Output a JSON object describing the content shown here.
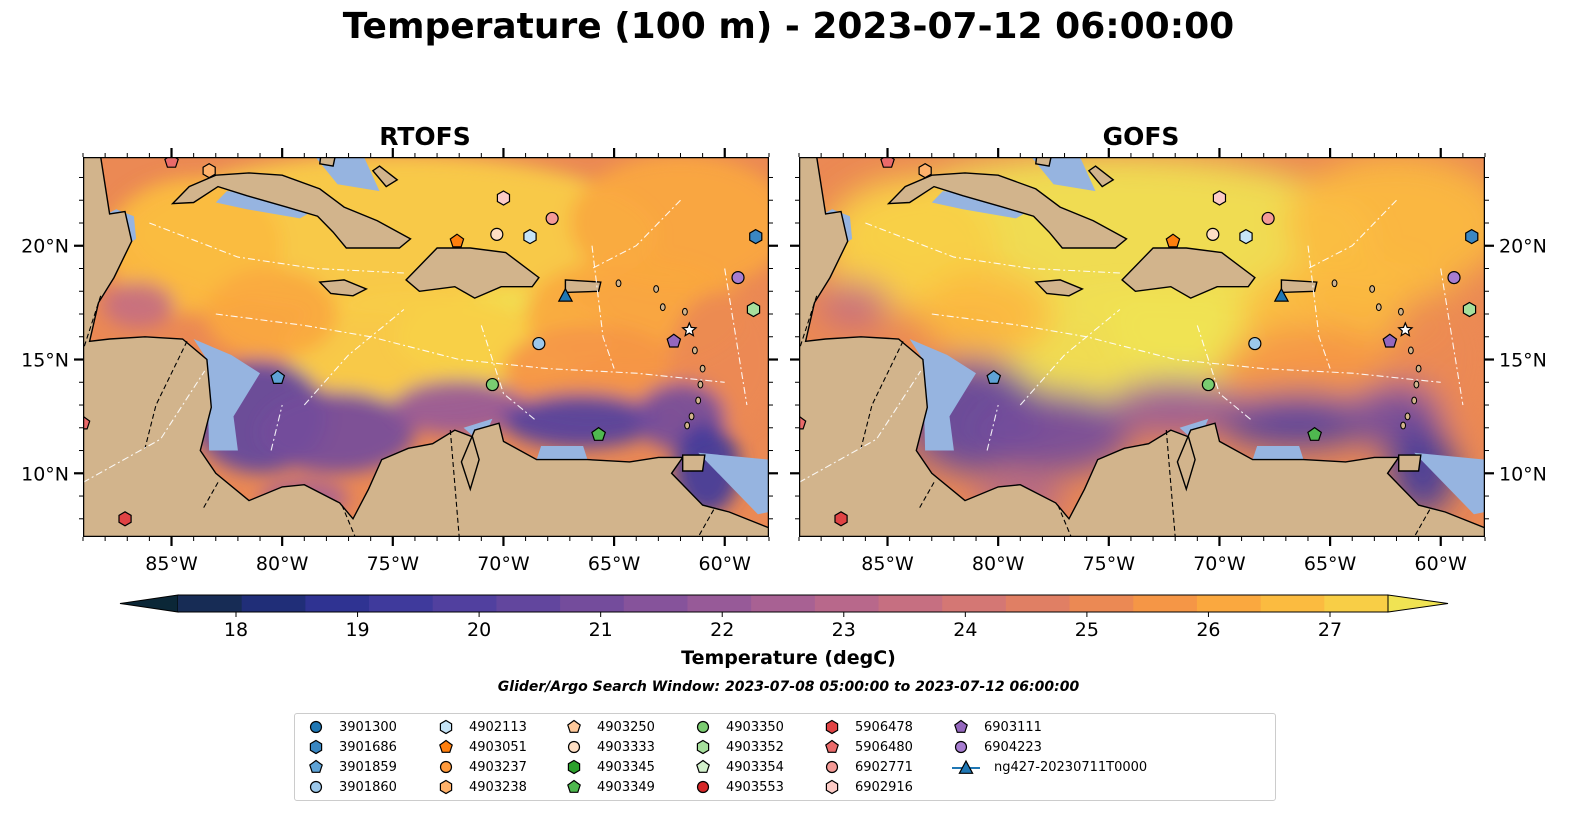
{
  "title": "Temperature (100 m) - 2023-07-12 06:00:00",
  "panels": [
    {
      "title": "RTOFS",
      "style": "rtofs"
    },
    {
      "title": "GOFS",
      "style": "gofs"
    }
  ],
  "lon_ticks": [
    "85°W",
    "80°W",
    "75°W",
    "70°W",
    "65°W",
    "60°W"
  ],
  "lat_ticks": [
    "20°N",
    "15°N",
    "10°N"
  ],
  "colorbar": {
    "label": "Temperature (degC)",
    "ticks": [
      "18",
      "19",
      "20",
      "21",
      "22",
      "23",
      "24",
      "25",
      "26",
      "27"
    ],
    "min": 18,
    "max": 27,
    "step": 0.5,
    "colors": [
      "#0b2737",
      "#172c55",
      "#202e78",
      "#2f3392",
      "#3f3a9c",
      "#51409f",
      "#62469e",
      "#744c9c",
      "#86539b",
      "#975a98",
      "#a86193",
      "#b8688b",
      "#c66f81",
      "#d47774",
      "#e07f64",
      "#eb8954",
      "#f59646",
      "#faa83f",
      "#fbbb40",
      "#f8ce46",
      "#f0e353"
    ]
  },
  "search_window": "Glider/Argo Search Window: 2023-07-08 05:00:00 to 2023-07-12 06:00:00",
  "land_color": "#d2b48c",
  "ocean_shallow_color": "#96b4e0",
  "legend": [
    {
      "label": "3901300",
      "marker": "circle",
      "color": "#1f77b4"
    },
    {
      "label": "3901686",
      "marker": "hexagon",
      "color": "#3a87c2"
    },
    {
      "label": "3901859",
      "marker": "pentagon",
      "color": "#5fa3d6"
    },
    {
      "label": "3901860",
      "marker": "circle",
      "color": "#9cc8ea"
    },
    {
      "label": "4902113",
      "marker": "hexagon",
      "color": "#c6e4f7"
    },
    {
      "label": "4903051",
      "marker": "pentagon",
      "color": "#ff7f0e"
    },
    {
      "label": "4903237",
      "marker": "circle",
      "color": "#ff9a3c"
    },
    {
      "label": "4903238",
      "marker": "hexagon",
      "color": "#ffb26b"
    },
    {
      "label": "4903250",
      "marker": "pentagon",
      "color": "#ffc99b"
    },
    {
      "label": "4903333",
      "marker": "circle",
      "color": "#ffdfc4"
    },
    {
      "label": "4903345",
      "marker": "hexagon",
      "color": "#2ca02c"
    },
    {
      "label": "4903349",
      "marker": "pentagon",
      "color": "#4fb84f"
    },
    {
      "label": "4903350",
      "marker": "circle",
      "color": "#7acd71"
    },
    {
      "label": "4903352",
      "marker": "hexagon",
      "color": "#a6df9c"
    },
    {
      "label": "4903354",
      "marker": "pentagon",
      "color": "#d3f1cc"
    },
    {
      "label": "4903553",
      "marker": "circle",
      "color": "#d62728"
    },
    {
      "label": "5906478",
      "marker": "hexagon",
      "color": "#e04344"
    },
    {
      "label": "5906480",
      "marker": "pentagon",
      "color": "#ea6a6a"
    },
    {
      "label": "6902771",
      "marker": "circle",
      "color": "#f49a96"
    },
    {
      "label": "6902916",
      "marker": "hexagon",
      "color": "#fccbc6"
    },
    {
      "label": "6903111",
      "marker": "pentagon",
      "color": "#9467bd"
    },
    {
      "label": "6904223",
      "marker": "circle",
      "color": "#a77dd0"
    },
    {
      "label": "ng427-20230711T0000",
      "marker": "triangle-line",
      "color": "#1f77b4"
    }
  ],
  "markers": [
    {
      "lon": -85.0,
      "lat": 23.7,
      "marker": "pentagon",
      "color": "#ea6a6a"
    },
    {
      "lon": -83.3,
      "lat": 23.3,
      "marker": "hexagon",
      "color": "#ffb26b"
    },
    {
      "lon": -72.1,
      "lat": 20.2,
      "marker": "pentagon",
      "color": "#ff7f0e"
    },
    {
      "lon": -70.3,
      "lat": 20.5,
      "marker": "circle",
      "color": "#ffdfc4"
    },
    {
      "lon": -70.0,
      "lat": 22.1,
      "marker": "hexagon",
      "color": "#fccbc6"
    },
    {
      "lon": -68.8,
      "lat": 20.4,
      "marker": "hexagon",
      "color": "#c6e4f7"
    },
    {
      "lon": -67.8,
      "lat": 21.2,
      "marker": "circle",
      "color": "#f49a96"
    },
    {
      "lon": -58.6,
      "lat": 20.4,
      "marker": "hexagon",
      "color": "#3a87c2"
    },
    {
      "lon": -59.4,
      "lat": 18.6,
      "marker": "circle",
      "color": "#a77dd0"
    },
    {
      "lon": -58.7,
      "lat": 17.2,
      "marker": "hexagon",
      "color": "#a6df9c"
    },
    {
      "lon": -61.6,
      "lat": 16.3,
      "marker": "star",
      "color": "#ffffff"
    },
    {
      "lon": -62.3,
      "lat": 15.8,
      "marker": "pentagon",
      "color": "#9467bd"
    },
    {
      "lon": -68.4,
      "lat": 15.7,
      "marker": "circle",
      "color": "#9cc8ea"
    },
    {
      "lon": -70.5,
      "lat": 13.9,
      "marker": "circle",
      "color": "#7acd71"
    },
    {
      "lon": -65.7,
      "lat": 11.7,
      "marker": "pentagon",
      "color": "#4fb84f"
    },
    {
      "lon": -80.2,
      "lat": 14.2,
      "marker": "pentagon",
      "color": "#5fa3d6"
    },
    {
      "lon": -89.0,
      "lat": 12.2,
      "marker": "pentagon",
      "color": "#ea6a6a"
    },
    {
      "lon": -87.1,
      "lat": 8.0,
      "marker": "hexagon",
      "color": "#e04344"
    },
    {
      "lon": -67.2,
      "lat": 17.8,
      "marker": "triangle",
      "color": "#1f77b4"
    }
  ],
  "map_extent": {
    "lon_min": -89,
    "lon_max": -58,
    "lat_min": 7.2,
    "lat_max": 23.9
  }
}
